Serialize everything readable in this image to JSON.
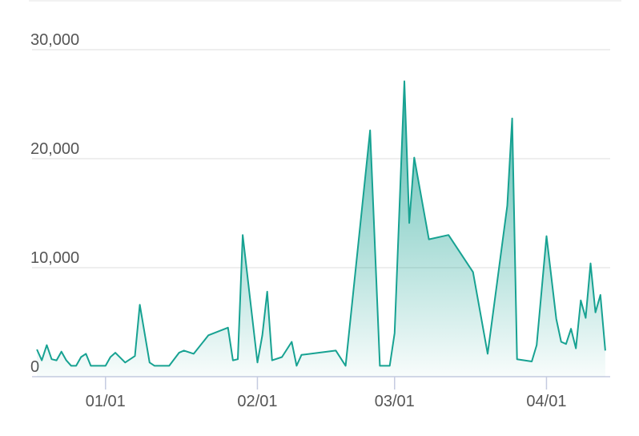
{
  "chart_data": {
    "type": "area",
    "x": [
      "12/18",
      "12/19",
      "12/20",
      "12/21",
      "12/22",
      "12/23",
      "12/24",
      "12/25",
      "12/26",
      "12/27",
      "12/28",
      "12/29",
      "01/01",
      "01/02",
      "01/03",
      "01/05",
      "01/07",
      "01/08",
      "01/10",
      "01/11",
      "01/14",
      "01/16",
      "01/17",
      "01/19",
      "01/22",
      "01/26",
      "01/27",
      "01/28",
      "01/29",
      "02/01",
      "02/02",
      "02/03",
      "02/04",
      "02/06",
      "02/08",
      "02/09",
      "02/10",
      "02/17",
      "02/19",
      "02/24",
      "02/26",
      "02/28",
      "03/01",
      "03/03",
      "03/04",
      "03/05",
      "03/08",
      "03/12",
      "03/17",
      "03/20",
      "03/24",
      "03/25",
      "03/26",
      "03/29",
      "03/30",
      "04/01",
      "04/03",
      "04/04",
      "04/05",
      "04/06",
      "04/07",
      "04/08",
      "04/09",
      "04/10",
      "04/11",
      "04/12",
      "04/13"
    ],
    "values": [
      2500,
      1500,
      2900,
      1600,
      1500,
      2300,
      1500,
      1000,
      1000,
      1800,
      2100,
      1000,
      1000,
      1800,
      2200,
      1300,
      1900,
      6600,
      1300,
      1000,
      1000,
      2200,
      2400,
      2100,
      3800,
      4500,
      1500,
      1600,
      13000,
      1300,
      3800,
      7800,
      1500,
      1800,
      3200,
      1000,
      2000,
      2400,
      1000,
      22600,
      1000,
      1000,
      4000,
      27100,
      14100,
      20100,
      12600,
      13000,
      9600,
      2100,
      15700,
      23700,
      1600,
      1400,
      2900,
      12900,
      5300,
      3200,
      3000,
      4400,
      2600,
      7000,
      5400,
      10400,
      5900,
      7500,
      2400
    ],
    "color": "#17a292",
    "xlim": [
      "12/17",
      "04/14"
    ],
    "xticks": [
      "01/01",
      "02/01",
      "03/01",
      "04/01"
    ],
    "ylim": [
      0,
      30000
    ],
    "yticks": [
      {
        "value": 0,
        "label": "0"
      },
      {
        "value": 10000,
        "label": "10,000"
      },
      {
        "value": 20000,
        "label": "20,000"
      },
      {
        "value": 30000,
        "label": "30,000"
      }
    ],
    "grid": true
  }
}
